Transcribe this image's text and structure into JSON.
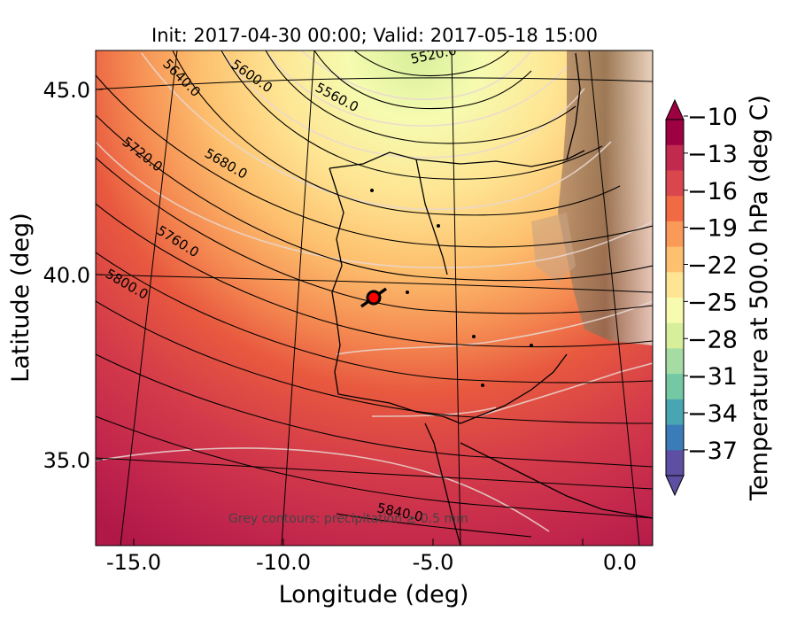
{
  "title": "Init: 2017-04-30 00:00; Valid: 2017-05-18 15:00",
  "axes": {
    "xlabel": "Longitude (deg)",
    "ylabel": "Latitude (deg)",
    "xticks": [
      "-15.0",
      "-10.0",
      "-5.0",
      "0.0"
    ],
    "yticks": [
      "45.0",
      "40.0",
      "35.0"
    ]
  },
  "colorbar": {
    "label": "Temperature at 500.0 hPa (deg C)",
    "ticks": [
      "−10",
      "−13",
      "−16",
      "−19",
      "−22",
      "−25",
      "−28",
      "−31",
      "−34",
      "−37"
    ],
    "colors": [
      "#5e4fa2",
      "#3a7cb8",
      "#4aa5b3",
      "#75c8a4",
      "#a5dca3",
      "#d7ef9b",
      "#f6fbb0",
      "#fee593",
      "#fdc06e",
      "#fa9a59",
      "#f06a44",
      "#d9464d",
      "#c02a4e",
      "#9e0142"
    ],
    "extend": "both"
  },
  "contour_labels": [
    "5520.0",
    "5560.0",
    "5600.0",
    "5640.0",
    "5680.0",
    "5720.0",
    "5760.0",
    "5800.0",
    "5840.0"
  ],
  "footnote": "Grey contours: precipitation ≥ 0.5 mm",
  "marker": {
    "label": "point of interest",
    "color": "#ff0000"
  }
}
